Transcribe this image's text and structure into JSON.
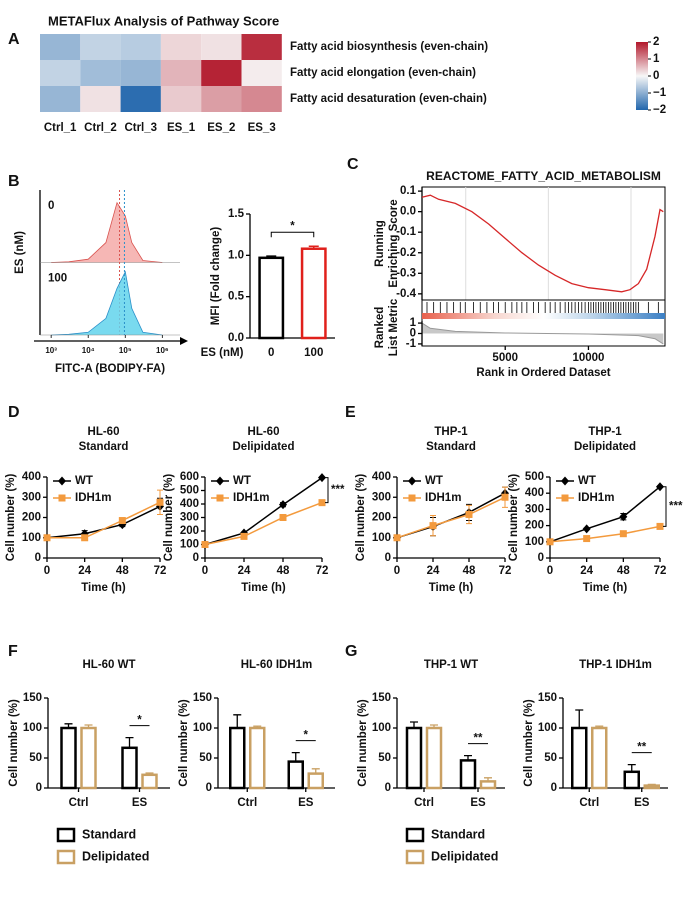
{
  "chart_data": [
    {
      "panel": "A",
      "type": "heatmap",
      "title": "METAFlux Analysis of Pathway Score",
      "columns": [
        "Ctrl_1",
        "Ctrl_2",
        "Ctrl_3",
        "ES_1",
        "ES_2",
        "ES_3"
      ],
      "rows": [
        "Fatty acid biosynthesis (even-chain)",
        "Fatty acid elongation (even-chain)",
        "Fatty acid desaturation (even-chain)"
      ],
      "values": [
        [
          -0.9,
          -0.5,
          -0.6,
          0.3,
          0.2,
          1.8
        ],
        [
          -0.5,
          -0.8,
          -0.9,
          0.6,
          1.9,
          0.1
        ],
        [
          -0.9,
          0.2,
          -1.9,
          0.4,
          0.8,
          1.0
        ]
      ],
      "clim": [
        -2,
        2
      ],
      "cticks": [
        2,
        1,
        0,
        {
          "value": -1,
          "label": "−1"
        },
        {
          "value": -2,
          "label": "−2"
        }
      ],
      "colormap": [
        "#2166ac",
        "#f7f7f7",
        "#b2182b"
      ]
    },
    {
      "panel": "B",
      "type": "density",
      "xlabel": "FITC-A (BODIPY-FA)",
      "ylabel": "ES (nM)",
      "x": [
        1000,
        3000,
        10000,
        30000,
        60000,
        100000,
        150000,
        300000,
        1000000
      ],
      "xlim": [
        500,
        3000000
      ],
      "log_x": true,
      "xticks": [
        {
          "value": 1000,
          "label": "10³"
        },
        {
          "value": 10000,
          "label": "10⁴"
        },
        {
          "value": 100000,
          "label": "10⁵"
        },
        {
          "value": 1000000,
          "label": "10⁶"
        }
      ],
      "series": [
        {
          "name": "0",
          "color": "#f4aaa8",
          "edge": "#d9534f",
          "values": [
            0,
            0.01,
            0.05,
            0.3,
            0.9,
            0.7,
            0.3,
            0.03,
            0
          ],
          "median": 70000
        },
        {
          "name": "100",
          "color": "#62d4ec",
          "edge": "#2a8fc9",
          "values": [
            0,
            0.01,
            0.04,
            0.25,
            0.7,
            0.95,
            0.4,
            0.04,
            0
          ],
          "median": 95000
        }
      ]
    },
    {
      "type": "bar",
      "ylabel": "MFI (Fold change)",
      "xlabel": "ES (nM)",
      "categories": [
        "0",
        "100"
      ],
      "values": [
        0.97,
        1.08
      ],
      "errors": [
        0.02,
        0.03
      ],
      "colors": [
        "#000000",
        "#e0201b"
      ],
      "ylim": [
        0,
        1.5
      ],
      "yticks": [
        {
          "value": 0,
          "label": "0.0"
        },
        0.5,
        {
          "value": 1,
          "label": "1.0"
        },
        1.5
      ],
      "significance": "*"
    },
    {
      "panel": "C",
      "type": "gsea",
      "title": "REACTOME_FATTY_ACID_METABOLISM",
      "ylabel": [
        "Running",
        "Enriching Score"
      ],
      "metric_ylabel": [
        "Ranked",
        "List Metric"
      ],
      "xlabel": "Rank in Ordered Dataset",
      "x": [
        0,
        500,
        1000,
        2000,
        3000,
        4000,
        5000,
        6000,
        7000,
        8000,
        9000,
        10000,
        11000,
        12000,
        12500,
        13000,
        13500,
        14000,
        14300,
        14500
      ],
      "values": [
        0.07,
        0.08,
        0.06,
        0.04,
        0.0,
        -0.06,
        -0.13,
        -0.2,
        -0.26,
        -0.31,
        -0.35,
        -0.37,
        -0.38,
        -0.39,
        -0.38,
        -0.35,
        -0.28,
        -0.12,
        0.01,
        0.0
      ],
      "color": "#d62728",
      "hits": [
        300,
        700,
        1100,
        1500,
        1900,
        2300,
        2600,
        3100,
        3500,
        3900,
        4300,
        4600,
        5000,
        5400,
        5700,
        6000,
        6300,
        6700,
        7000,
        7400,
        7700,
        8000,
        8300,
        8600,
        8800,
        9000,
        9200,
        9400,
        9600,
        9800,
        10000,
        10150,
        10300,
        10450,
        10600,
        10750,
        10900,
        11050,
        11200,
        11350,
        11500,
        11650,
        11800,
        11950,
        12100,
        12250,
        12400,
        12550,
        12700,
        12850,
        13000,
        13600,
        14200
      ],
      "metric_x": [
        0,
        500,
        2000,
        5000,
        7500,
        10000,
        13000,
        14000,
        14500
      ],
      "metric_values": [
        1.0,
        0.5,
        0.2,
        0.05,
        0,
        -0.05,
        -0.2,
        -0.5,
        -1.0
      ],
      "xlim": [
        0,
        14600
      ],
      "xticks": [
        5000,
        10000
      ],
      "ylim": [
        -0.43,
        0.12
      ],
      "yticks": [
        0.1,
        {
          "value": 0,
          "label": "0.0"
        },
        -0.1,
        -0.2,
        -0.3,
        -0.4
      ],
      "metric_ylim": [
        -1.2,
        1.2
      ],
      "metric_yticks": [
        1,
        0,
        -1
      ]
    },
    {
      "panel": "D",
      "type": "line",
      "title": [
        "HL-60",
        "Standard"
      ],
      "xlabel": "Time (h)",
      "ylabel": "Cell number (%)",
      "x": [
        0,
        24,
        48,
        72
      ],
      "xlim": [
        0,
        72
      ],
      "xticks": [
        0,
        24,
        48,
        72
      ],
      "ylim": [
        0,
        400
      ],
      "yticks": [
        0,
        100,
        200,
        300,
        400
      ],
      "legend": "upper left",
      "series": [
        {
          "name": "WT",
          "color": "#000000",
          "marker": "diamond",
          "values": [
            100,
            120,
            165,
            255
          ],
          "errors": [
            0,
            15,
            10,
            40
          ]
        },
        {
          "name": "IDH1m",
          "color": "#f39a3d",
          "marker": "square",
          "values": [
            100,
            100,
            185,
            275
          ],
          "errors": [
            0,
            10,
            10,
            60
          ]
        }
      ]
    },
    {
      "type": "line",
      "title": [
        "HL-60",
        "Delipidated"
      ],
      "xlabel": "Time (h)",
      "ylabel": "Cell number (%)",
      "x": [
        0,
        24,
        48,
        72
      ],
      "xlim": [
        0,
        72
      ],
      "xticks": [
        0,
        24,
        48,
        72
      ],
      "ylim": [
        0,
        600
      ],
      "yticks": [
        0,
        100,
        200,
        300,
        400,
        500,
        600
      ],
      "legend": "upper left",
      "significance": "***",
      "series": [
        {
          "name": "WT",
          "color": "#000000",
          "marker": "diamond",
          "values": [
            100,
            185,
            395,
            595
          ],
          "errors": [
            0,
            8,
            15,
            5
          ]
        },
        {
          "name": "IDH1m",
          "color": "#f39a3d",
          "marker": "square",
          "values": [
            100,
            160,
            300,
            410
          ],
          "errors": [
            0,
            5,
            8,
            5
          ]
        }
      ]
    },
    {
      "panel": "E",
      "type": "line",
      "title": [
        "THP-1",
        "Standard"
      ],
      "xlabel": "Time (h)",
      "ylabel": "Cell number (%)",
      "x": [
        0,
        24,
        48,
        72
      ],
      "xlim": [
        0,
        72
      ],
      "xticks": [
        0,
        24,
        48,
        72
      ],
      "ylim": [
        0,
        400
      ],
      "yticks": [
        0,
        100,
        200,
        300,
        400
      ],
      "legend": "upper left",
      "series": [
        {
          "name": "WT",
          "color": "#000000",
          "marker": "diamond",
          "values": [
            100,
            155,
            225,
            320
          ],
          "errors": [
            0,
            45,
            40,
            30
          ]
        },
        {
          "name": "IDH1m",
          "color": "#f39a3d",
          "marker": "square",
          "values": [
            100,
            160,
            215,
            300
          ],
          "errors": [
            0,
            50,
            45,
            50
          ]
        }
      ]
    },
    {
      "type": "line",
      "title": [
        "THP-1",
        "Delipidated"
      ],
      "xlabel": "Time (h)",
      "ylabel": "Cell number (%)",
      "x": [
        0,
        24,
        48,
        72
      ],
      "xlim": [
        0,
        72
      ],
      "xticks": [
        0,
        24,
        48,
        72
      ],
      "ylim": [
        0,
        500
      ],
      "yticks": [
        0,
        100,
        200,
        300,
        400,
        500
      ],
      "legend": "upper left",
      "significance": "***",
      "series": [
        {
          "name": "WT",
          "color": "#000000",
          "marker": "diamond",
          "values": [
            100,
            180,
            255,
            440
          ],
          "errors": [
            0,
            5,
            20,
            5
          ]
        },
        {
          "name": "IDH1m",
          "color": "#f39a3d",
          "marker": "square",
          "values": [
            100,
            120,
            150,
            195
          ],
          "errors": [
            0,
            5,
            8,
            5
          ]
        }
      ]
    },
    {
      "panel": "F",
      "type": "grouped-bar",
      "title": "HL-60 WT",
      "xlabel": null,
      "ylabel": "Cell number (%)",
      "categories": [
        "Ctrl",
        "ES"
      ],
      "ylim": [
        0,
        150
      ],
      "yticks": [
        0,
        50,
        100,
        150
      ],
      "significance": "*",
      "legend": "bottom",
      "series": [
        {
          "name": "Standard",
          "color": "#000000",
          "values": [
            100,
            67
          ],
          "errors": [
            7,
            17
          ]
        },
        {
          "name": "Delipidated",
          "color": "#c9a063",
          "values": [
            100,
            22
          ],
          "errors": [
            5,
            3
          ]
        }
      ]
    },
    {
      "type": "grouped-bar",
      "title": "HL-60 IDH1m",
      "ylabel": "Cell number (%)",
      "categories": [
        "Ctrl",
        "ES"
      ],
      "ylim": [
        0,
        150
      ],
      "yticks": [
        0,
        50,
        100,
        150
      ],
      "significance": "*",
      "series": [
        {
          "name": "Standard",
          "color": "#000000",
          "values": [
            100,
            44
          ],
          "errors": [
            22,
            15
          ]
        },
        {
          "name": "Delipidated",
          "color": "#c9a063",
          "values": [
            100,
            24
          ],
          "errors": [
            3,
            8
          ]
        }
      ]
    },
    {
      "panel": "G",
      "type": "grouped-bar",
      "title": "THP-1 WT",
      "ylabel": "Cell number (%)",
      "categories": [
        "Ctrl",
        "ES"
      ],
      "ylim": [
        0,
        150
      ],
      "yticks": [
        0,
        50,
        100,
        150
      ],
      "significance": "**",
      "legend": "bottom",
      "series": [
        {
          "name": "Standard",
          "color": "#000000",
          "values": [
            100,
            46
          ],
          "errors": [
            10,
            8
          ]
        },
        {
          "name": "Delipidated",
          "color": "#c9a063",
          "values": [
            100,
            11
          ],
          "errors": [
            5,
            6
          ]
        }
      ]
    },
    {
      "type": "grouped-bar",
      "title": "THP-1 IDH1m",
      "ylabel": "Cell number (%)",
      "categories": [
        "Ctrl",
        "ES"
      ],
      "ylim": [
        0,
        150
      ],
      "yticks": [
        0,
        50,
        100,
        150
      ],
      "significance": "**",
      "series": [
        {
          "name": "Standard",
          "color": "#000000",
          "values": [
            100,
            27
          ],
          "errors": [
            30,
            12
          ]
        },
        {
          "name": "Delipidated",
          "color": "#c9a063",
          "values": [
            100,
            4
          ],
          "errors": [
            3,
            2
          ]
        }
      ]
    }
  ]
}
